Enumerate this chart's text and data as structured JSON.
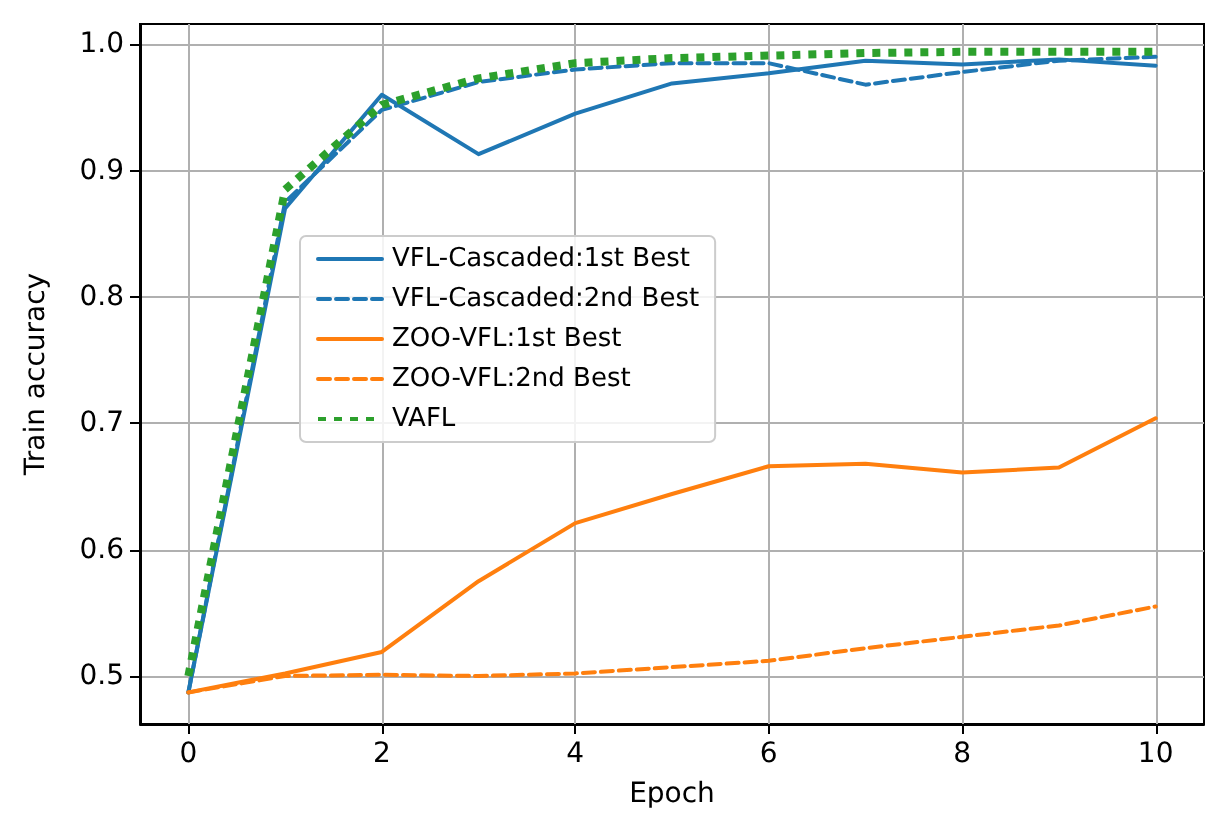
{
  "chart_data": {
    "type": "line",
    "xlabel": "Epoch",
    "ylabel": "Train accuracy",
    "x": [
      0,
      1,
      2,
      3,
      4,
      5,
      6,
      7,
      8,
      9,
      10
    ],
    "series": [
      {
        "name": "VFL-Cascaded:1st Best",
        "color": "#1f77b4",
        "line_style": "solid",
        "values": [
          0.487,
          0.87,
          0.96,
          0.913,
          0.945,
          0.969,
          0.977,
          0.987,
          0.984,
          0.988,
          0.983
        ]
      },
      {
        "name": "VFL-Cascaded:2nd Best",
        "color": "#1f77b4",
        "line_style": "dashed",
        "values": [
          0.487,
          0.875,
          0.948,
          0.97,
          0.98,
          0.985,
          0.985,
          0.968,
          0.978,
          0.987,
          0.99
        ]
      },
      {
        "name": "ZOO-VFL:1st Best",
        "color": "#ff7f0e",
        "line_style": "solid",
        "values": [
          0.487,
          0.502,
          0.519,
          0.575,
          0.621,
          0.644,
          0.666,
          0.668,
          0.661,
          0.665,
          0.704
        ]
      },
      {
        "name": "ZOO-VFL:2nd Best",
        "color": "#ff7f0e",
        "line_style": "dashed",
        "values": [
          0.487,
          0.5,
          0.501,
          0.5,
          0.502,
          0.507,
          0.512,
          0.522,
          0.531,
          0.54,
          0.555
        ]
      },
      {
        "name": "VAFL",
        "color": "#2ca02c",
        "line_style": "dotted",
        "values": [
          0.5,
          0.885,
          0.952,
          0.973,
          0.985,
          0.989,
          0.991,
          0.993,
          0.994,
          0.994,
          0.994
        ]
      }
    ],
    "xlim": [
      -0.5,
      10.5
    ],
    "xticks": [
      0,
      2,
      4,
      6,
      8,
      10
    ],
    "ylim": [
      0.462,
      1.016
    ],
    "yticks": [
      0.5,
      0.6,
      0.7,
      0.8,
      0.9,
      {
        "value": 1,
        "label": "1.0"
      }
    ],
    "grid": true,
    "legend": "center left",
    "marker": "none"
  }
}
